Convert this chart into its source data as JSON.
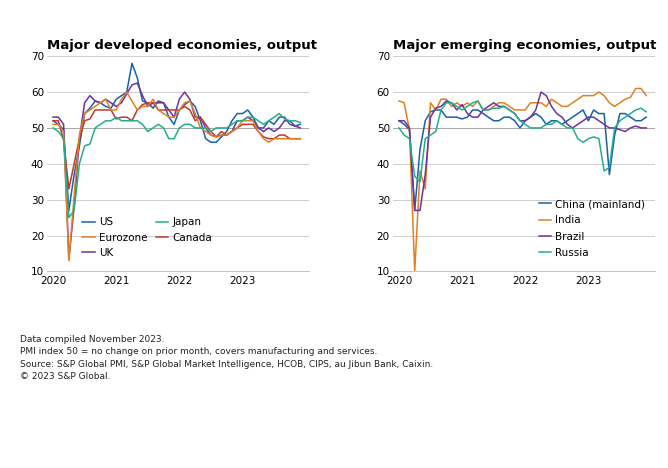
{
  "title_left": "Major developed economies, output",
  "title_right": "Major emerging economies, output",
  "footer_lines": [
    "Data compiled November 2023.",
    "PMI index 50 = no change on prior month, covers manufacturing and services.",
    "Source: S&P Global PMI, S&P Global Market Intelligence, HCOB, CIPS, au Jibun Bank, Caixin.",
    "© 2023 S&P Global."
  ],
  "ylim": [
    10,
    70
  ],
  "yticks": [
    10,
    20,
    30,
    40,
    50,
    60,
    70
  ],
  "grid_lines": [
    10,
    20,
    30,
    40,
    50,
    60,
    70
  ],
  "ref_line": 50,
  "colors": {
    "US": "#1a5fa8",
    "UK": "#7030a0",
    "Canada": "#c0392b",
    "Eurozone": "#e08020",
    "Japan": "#20b090",
    "China": "#1a5fa8",
    "India": "#e08020",
    "Brazil": "#7030a0",
    "Russia": "#20b090"
  },
  "developed": {
    "US": [
      52.0,
      51.0,
      49.5,
      27.0,
      37.0,
      45.0,
      54.0,
      55.5,
      57.5,
      57.0,
      56.0,
      55.5,
      58.0,
      59.0,
      60.0,
      68.0,
      64.0,
      57.5,
      57.0,
      55.5,
      57.5,
      57.0,
      53.0,
      51.0,
      55.0,
      56.5,
      57.5,
      56.0,
      52.0,
      47.0,
      46.0,
      46.0,
      47.5,
      49.0,
      52.0,
      54.0,
      54.0,
      55.0,
      53.0,
      50.0,
      50.0,
      52.0,
      51.0,
      53.0,
      53.0,
      51.0,
      50.5,
      51.0
    ],
    "UK": [
      53.0,
      53.0,
      51.0,
      13.5,
      28.0,
      47.0,
      57.0,
      59.0,
      57.5,
      57.0,
      58.0,
      57.0,
      56.0,
      57.0,
      59.5,
      62.0,
      62.5,
      59.0,
      56.0,
      57.0,
      57.0,
      57.0,
      55.0,
      53.0,
      58.0,
      60.0,
      58.0,
      53.0,
      53.0,
      50.0,
      48.0,
      47.5,
      48.0,
      48.0,
      49.0,
      52.0,
      52.0,
      53.0,
      52.0,
      50.0,
      49.0,
      50.0,
      49.0,
      50.0,
      52.0,
      52.0,
      50.5,
      50.0
    ],
    "Canada": [
      52.0,
      52.0,
      46.5,
      33.0,
      40.0,
      47.0,
      52.0,
      52.5,
      55.0,
      55.0,
      55.0,
      55.0,
      52.5,
      53.0,
      53.0,
      52.0,
      55.0,
      56.5,
      57.0,
      57.0,
      55.0,
      55.0,
      55.0,
      55.0,
      55.0,
      56.0,
      55.0,
      52.0,
      53.0,
      51.0,
      49.0,
      47.5,
      49.0,
      48.0,
      49.0,
      50.0,
      51.0,
      51.0,
      51.0,
      49.0,
      47.5,
      47.0,
      47.0,
      48.0,
      48.0,
      47.0,
      47.0,
      47.0
    ],
    "Eurozone": [
      51.0,
      51.0,
      48.8,
      13.0,
      31.0,
      48.0,
      54.0,
      55.0,
      56.0,
      57.0,
      58.0,
      55.0,
      55.0,
      58.0,
      60.0,
      57.5,
      55.0,
      56.0,
      56.0,
      58.0,
      55.0,
      54.0,
      53.0,
      53.0,
      55.0,
      57.0,
      57.5,
      54.0,
      50.0,
      49.0,
      48.0,
      47.5,
      48.0,
      48.0,
      49.0,
      50.0,
      52.0,
      52.0,
      52.0,
      49.0,
      47.0,
      46.0,
      47.0,
      47.0,
      47.0,
      47.0,
      47.0,
      47.0
    ],
    "Japan": [
      50.0,
      49.0,
      47.0,
      25.0,
      27.0,
      40.0,
      45.0,
      45.5,
      50.0,
      51.0,
      52.0,
      52.0,
      53.0,
      52.0,
      52.0,
      52.0,
      52.0,
      51.0,
      49.0,
      50.0,
      51.0,
      50.0,
      47.0,
      47.0,
      50.0,
      51.0,
      51.0,
      50.0,
      50.0,
      50.0,
      49.0,
      50.0,
      50.0,
      50.0,
      51.0,
      52.0,
      52.0,
      53.0,
      53.0,
      52.0,
      51.0,
      52.0,
      53.0,
      54.0,
      52.5,
      52.0,
      52.0,
      51.5
    ]
  },
  "emerging": {
    "China": [
      52.0,
      51.0,
      49.5,
      27.0,
      44.0,
      52.0,
      54.5,
      55.0,
      55.0,
      53.0,
      53.0,
      53.0,
      52.5,
      53.0,
      55.0,
      55.0,
      54.0,
      53.0,
      52.0,
      52.0,
      53.0,
      53.0,
      52.0,
      50.0,
      52.0,
      53.0,
      54.0,
      53.0,
      51.0,
      52.0,
      52.0,
      51.0,
      52.0,
      53.0,
      54.0,
      55.0,
      52.0,
      55.0,
      54.0,
      54.0,
      37.0,
      48.0,
      54.0,
      54.0,
      53.0,
      52.0,
      52.0,
      53.0
    ],
    "India": [
      57.5,
      57.0,
      49.3,
      10.0,
      38.0,
      33.0,
      57.0,
      55.0,
      58.0,
      58.0,
      56.0,
      57.0,
      56.0,
      57.0,
      56.0,
      57.5,
      55.0,
      55.0,
      56.0,
      57.0,
      57.0,
      56.0,
      55.0,
      55.0,
      55.0,
      57.0,
      57.0,
      57.0,
      56.0,
      58.0,
      57.0,
      56.0,
      56.0,
      57.0,
      58.0,
      59.0,
      59.0,
      59.0,
      60.0,
      59.0,
      57.0,
      56.0,
      57.0,
      58.0,
      58.5,
      61.0,
      61.0,
      59.0
    ],
    "Brazil": [
      52.0,
      52.0,
      50.0,
      27.0,
      27.0,
      37.0,
      53.0,
      55.5,
      56.0,
      57.5,
      57.0,
      55.0,
      56.5,
      54.0,
      53.0,
      53.0,
      55.0,
      56.0,
      57.0,
      56.0,
      56.0,
      55.0,
      54.0,
      52.0,
      52.0,
      53.0,
      55.0,
      60.0,
      59.0,
      56.0,
      54.0,
      53.0,
      51.0,
      50.0,
      51.0,
      52.0,
      53.0,
      53.0,
      52.0,
      51.0,
      50.0,
      50.0,
      49.5,
      49.0,
      50.0,
      50.5,
      50.0,
      50.0
    ],
    "Russia": [
      50.0,
      48.0,
      47.0,
      36.5,
      35.0,
      47.0,
      48.0,
      49.0,
      55.0,
      57.0,
      57.0,
      56.0,
      55.0,
      56.0,
      57.0,
      57.5,
      55.0,
      55.0,
      55.5,
      55.5,
      56.0,
      55.0,
      54.0,
      52.0,
      51.0,
      50.0,
      50.0,
      50.0,
      51.0,
      51.0,
      52.0,
      51.0,
      50.0,
      50.0,
      47.0,
      46.0,
      47.0,
      47.5,
      47.0,
      38.0,
      39.0,
      50.0,
      52.0,
      53.0,
      54.0,
      55.0,
      55.5,
      54.5
    ]
  },
  "lw": 1.1,
  "title_fontsize": 9.5,
  "tick_fontsize": 7.5,
  "legend_fontsize": 7.5,
  "footer_fontsize": 6.5
}
